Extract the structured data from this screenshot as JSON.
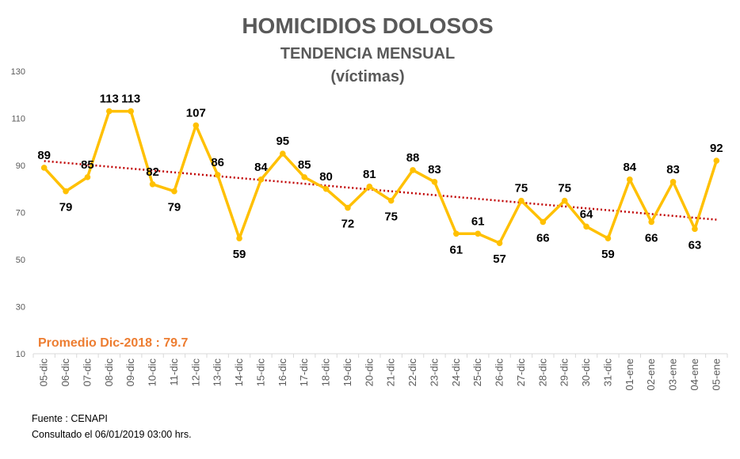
{
  "chart_data": {
    "type": "line",
    "title": "HOMICIDIOS DOLOSOS",
    "subtitle": "TENDENCIA MENSUAL",
    "subtitle2": "(víctimas)",
    "categories": [
      "05-dic",
      "06-dic",
      "07-dic",
      "08-dic",
      "09-dic",
      "10-dic",
      "11-dic",
      "12-dic",
      "13-dic",
      "14-dic",
      "15-dic",
      "16-dic",
      "17-dic",
      "18-dic",
      "19-dic",
      "20-dic",
      "21-dic",
      "22-dic",
      "23-dic",
      "24-dic",
      "25-dic",
      "26-dic",
      "27-dic",
      "28-dic",
      "29-dic",
      "30-dic",
      "31-dic",
      "01-ene",
      "02-ene",
      "03-ene",
      "04-ene",
      "05-ene"
    ],
    "series": [
      {
        "values": [
          89,
          79,
          85,
          113,
          113,
          82,
          79,
          107,
          86,
          59,
          84,
          95,
          85,
          80,
          72,
          81,
          75,
          88,
          83,
          61,
          61,
          57,
          75,
          66,
          75,
          64,
          59,
          84,
          66,
          83,
          63,
          92
        ],
        "color": "#FFC000"
      }
    ],
    "trendline": {
      "type": "linear",
      "style": "dotted",
      "color": "#C00000"
    },
    "y_ticks": [
      10,
      30,
      50,
      70,
      90,
      110,
      130
    ],
    "ylim": [
      10,
      130
    ],
    "xlabel": "",
    "ylabel": "",
    "grid": false,
    "legend": "none",
    "annotation": {
      "text": "Promedio Dic-2018 : 79.7",
      "color": "#ED7D31"
    },
    "source_lines": [
      "Fuente : CENAPI",
      "Consultado el 06/01/2019  03:00  hrs."
    ]
  }
}
